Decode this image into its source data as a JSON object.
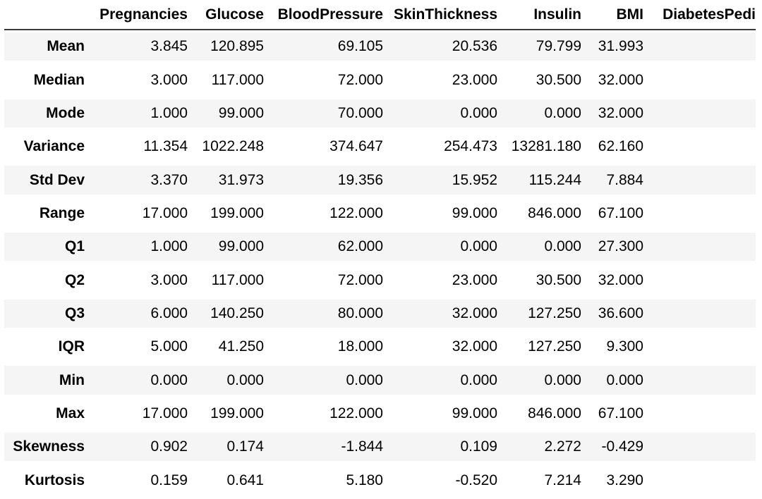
{
  "colors": {
    "stripe_row_background": "#f5f5f5",
    "header_rule": "#3a3a3a",
    "text": "#000000",
    "page_background": "#ffffff"
  },
  "chart_data": {
    "type": "table",
    "title": "",
    "columns": [
      "",
      "Pregnancies",
      "Glucose",
      "BloodPressure",
      "SkinThickness",
      "Insulin",
      "BMI",
      "DiabetesPedi"
    ],
    "rows": [
      {
        "label": "Mean",
        "values": [
          "3.845",
          "120.895",
          "69.105",
          "20.536",
          "79.799",
          "31.993"
        ]
      },
      {
        "label": "Median",
        "values": [
          "3.000",
          "117.000",
          "72.000",
          "23.000",
          "30.500",
          "32.000"
        ]
      },
      {
        "label": "Mode",
        "values": [
          "1.000",
          "99.000",
          "70.000",
          "0.000",
          "0.000",
          "32.000"
        ]
      },
      {
        "label": "Variance",
        "values": [
          "11.354",
          "1022.248",
          "374.647",
          "254.473",
          "13281.180",
          "62.160"
        ]
      },
      {
        "label": "Std Dev",
        "values": [
          "3.370",
          "31.973",
          "19.356",
          "15.952",
          "115.244",
          "7.884"
        ]
      },
      {
        "label": "Range",
        "values": [
          "17.000",
          "199.000",
          "122.000",
          "99.000",
          "846.000",
          "67.100"
        ]
      },
      {
        "label": "Q1",
        "values": [
          "1.000",
          "99.000",
          "62.000",
          "0.000",
          "0.000",
          "27.300"
        ]
      },
      {
        "label": "Q2",
        "values": [
          "3.000",
          "117.000",
          "72.000",
          "23.000",
          "30.500",
          "32.000"
        ]
      },
      {
        "label": "Q3",
        "values": [
          "6.000",
          "140.250",
          "80.000",
          "32.000",
          "127.250",
          "36.600"
        ]
      },
      {
        "label": "IQR",
        "values": [
          "5.000",
          "41.250",
          "18.000",
          "32.000",
          "127.250",
          "9.300"
        ]
      },
      {
        "label": "Min",
        "values": [
          "0.000",
          "0.000",
          "0.000",
          "0.000",
          "0.000",
          "0.000"
        ]
      },
      {
        "label": "Max",
        "values": [
          "17.000",
          "199.000",
          "122.000",
          "99.000",
          "846.000",
          "67.100"
        ]
      },
      {
        "label": "Skewness",
        "values": [
          "0.902",
          "0.174",
          "-1.844",
          "0.109",
          "2.272",
          "-0.429"
        ]
      },
      {
        "label": "Kurtosis",
        "values": [
          "0.159",
          "0.641",
          "5.180",
          "-0.520",
          "7.214",
          "3.290"
        ]
      }
    ],
    "layout_hints": {
      "striped_rows": "odd rows shaded",
      "value_alignment": "right",
      "last_column_truncated": true,
      "last_column_values_visible": false
    }
  }
}
